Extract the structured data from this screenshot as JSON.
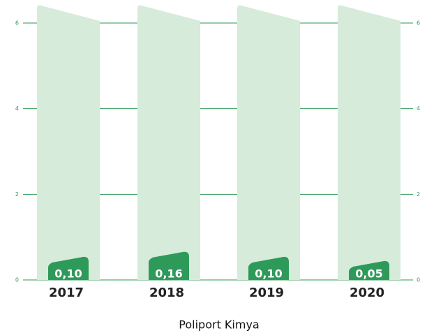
{
  "chart_data": {
    "type": "bar",
    "categories": [
      "2017",
      "2018",
      "2019",
      "2020"
    ],
    "values": [
      0.1,
      0.16,
      0.1,
      0.05
    ],
    "value_labels": [
      "0,10",
      "0,16",
      "0,10",
      "0,05"
    ],
    "xlabel": "Poliport Kimya",
    "color": "#2e9a5a",
    "background_color": "#d6ebd9",
    "ylim": [
      0,
      6
    ],
    "yticks": [
      0,
      2,
      4,
      6
    ],
    "grid": true
  }
}
